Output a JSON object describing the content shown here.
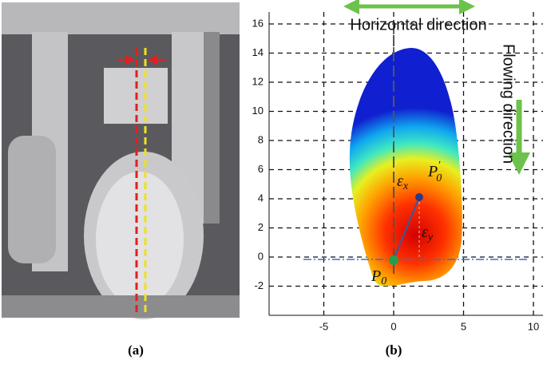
{
  "panel_a": {
    "label": "(a)"
  },
  "panel_b": {
    "label": "(b)",
    "xticks": [
      -5,
      0,
      5,
      10
    ],
    "yticks": [
      -2,
      0,
      2,
      4,
      6,
      8,
      10,
      12,
      14,
      16
    ],
    "horizontal_label": "Horizontal  direction",
    "flowing_label": "Flowing  direction",
    "eps_x": {
      "symbol": "ε",
      "sub": "x"
    },
    "eps_y": {
      "symbol": "ε",
      "sub": "y"
    },
    "p0_prime": {
      "symbol": "P",
      "sub": "0",
      "sup": "′"
    },
    "p0": {
      "symbol": "P",
      "sub": "0"
    }
  }
}
